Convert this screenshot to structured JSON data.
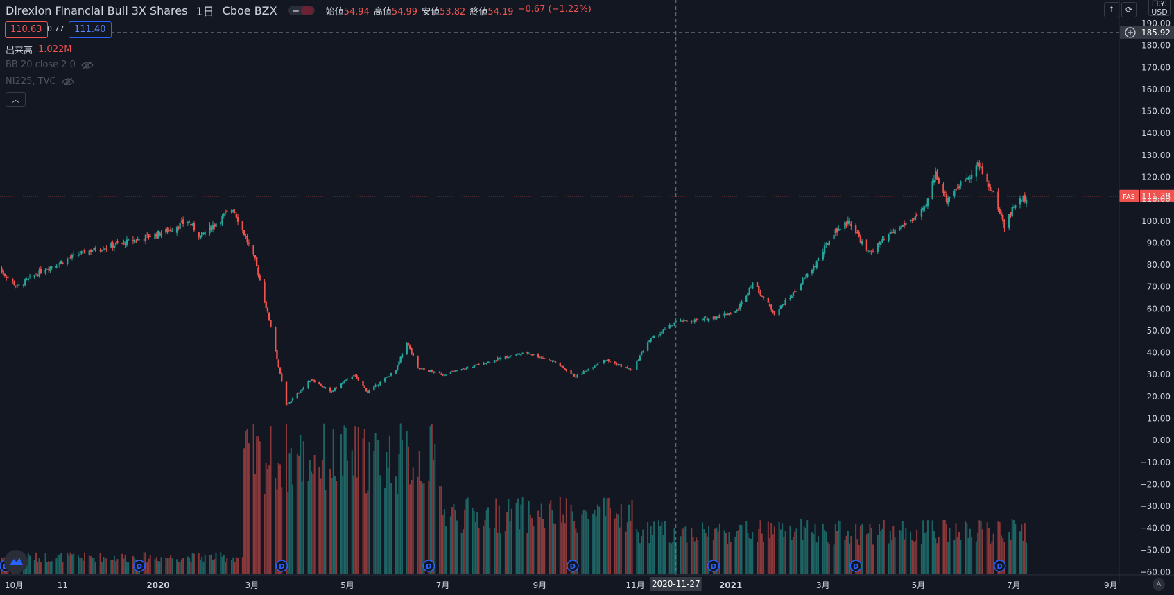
{
  "header": {
    "symbol_name": "Direxion Financial Bull 3X Shares",
    "interval": "1日",
    "exchange": "Cboe BZX",
    "ohlc": [
      {
        "key": "始値",
        "value": "54.94"
      },
      {
        "key": "高値",
        "value": "54.99"
      },
      {
        "key": "安値",
        "value": "53.82"
      },
      {
        "key": "終値",
        "value": "54.19"
      }
    ],
    "change": "−0.67 (−1.22%)",
    "bid": "110.63",
    "spread": "0.77",
    "ask": "111.40"
  },
  "indicators": {
    "volume_label": "出来高",
    "volume_value": "1.022M",
    "bb_label": "BB 20 close 2 0",
    "compare_label": "NI225, TVC"
  },
  "price_axis": {
    "currency_top": "円(¥)",
    "currency": "USD",
    "cursor_label": "185.92",
    "last_price_symbol": "FAS",
    "last_price_label": "111.38"
  },
  "time_axis": {
    "cursor_date": "2020-11-27"
  },
  "colors": {
    "background": "#131722",
    "up": "#26a69a",
    "down": "#ef5350",
    "text": "#d1d4dc",
    "accent": "#2962ff"
  },
  "icons": [
    "arrow-up-icon",
    "refresh-icon",
    "eye-off-icon",
    "chevron-up-icon",
    "plus-circle-icon",
    "dividend-icon",
    "logo-icon"
  ],
  "chart_data": {
    "type": "candlestick",
    "title": "Direxion Financial Bull 3X Shares",
    "ylim": [
      -60,
      190
    ],
    "y_ticks": [
      190,
      180,
      170,
      160,
      150,
      140,
      130,
      120,
      110,
      100,
      90,
      80,
      70,
      60,
      50,
      40,
      30,
      20,
      10,
      0,
      -10,
      -20,
      -30,
      -40,
      -50,
      -60
    ],
    "y_tick_labels": [
      "190.00",
      "180.00",
      "170.00",
      "160.00",
      "150.00",
      "140.00",
      "130.00",
      "120.00",
      "110.00",
      "100.00",
      "90.00",
      "80.00",
      "70.00",
      "60.00",
      "50.00",
      "40.00",
      "30.00",
      "20.00",
      "10.00",
      "0.00",
      "−10.00",
      "−20.00",
      "−30.00",
      "−40.00",
      "−50.00",
      "−60.00"
    ],
    "x_ticks": [
      {
        "label": "10月",
        "bold": false
      },
      {
        "label": "11",
        "bold": false
      },
      {
        "label": "2020",
        "bold": true
      },
      {
        "label": "3月",
        "bold": false
      },
      {
        "label": "5月",
        "bold": false
      },
      {
        "label": "7月",
        "bold": false
      },
      {
        "label": "9月",
        "bold": false
      },
      {
        "label": "11月",
        "bold": false
      },
      {
        "label": "2021",
        "bold": true
      },
      {
        "label": "3月",
        "bold": false
      },
      {
        "label": "5月",
        "bold": false
      },
      {
        "label": "7月",
        "bold": false
      },
      {
        "label": "9月",
        "bold": false
      }
    ],
    "price_path": [
      {
        "date": "2019-09-20",
        "close": 79
      },
      {
        "date": "2019-10-03",
        "close": 70
      },
      {
        "date": "2019-10-20",
        "close": 78
      },
      {
        "date": "2019-11-15",
        "close": 86
      },
      {
        "date": "2019-12-10",
        "close": 90
      },
      {
        "date": "2020-01-05",
        "close": 95
      },
      {
        "date": "2020-01-20",
        "close": 100
      },
      {
        "date": "2020-01-28",
        "close": 93
      },
      {
        "date": "2020-02-18",
        "close": 106
      },
      {
        "date": "2020-02-24",
        "close": 96
      },
      {
        "date": "2020-03-03",
        "close": 82
      },
      {
        "date": "2020-03-09",
        "close": 64
      },
      {
        "date": "2020-03-13",
        "close": 52
      },
      {
        "date": "2020-03-19",
        "close": 30
      },
      {
        "date": "2020-03-23",
        "close": 16
      },
      {
        "date": "2020-04-08",
        "close": 28
      },
      {
        "date": "2020-04-20",
        "close": 22
      },
      {
        "date": "2020-05-05",
        "close": 30
      },
      {
        "date": "2020-05-14",
        "close": 22
      },
      {
        "date": "2020-06-01",
        "close": 32
      },
      {
        "date": "2020-06-08",
        "close": 45
      },
      {
        "date": "2020-06-15",
        "close": 33
      },
      {
        "date": "2020-07-01",
        "close": 30
      },
      {
        "date": "2020-08-10",
        "close": 38
      },
      {
        "date": "2020-08-24",
        "close": 40
      },
      {
        "date": "2020-09-10",
        "close": 36
      },
      {
        "date": "2020-09-24",
        "close": 29
      },
      {
        "date": "2020-10-12",
        "close": 37
      },
      {
        "date": "2020-10-30",
        "close": 32
      },
      {
        "date": "2020-11-09",
        "close": 45
      },
      {
        "date": "2020-11-27",
        "close": 54
      },
      {
        "date": "2020-12-15",
        "close": 55
      },
      {
        "date": "2021-01-05",
        "close": 59
      },
      {
        "date": "2021-01-15",
        "close": 72
      },
      {
        "date": "2021-01-29",
        "close": 58
      },
      {
        "date": "2021-02-10",
        "close": 67
      },
      {
        "date": "2021-02-24",
        "close": 80
      },
      {
        "date": "2021-03-08",
        "close": 95
      },
      {
        "date": "2021-03-18",
        "close": 100
      },
      {
        "date": "2021-03-30",
        "close": 85
      },
      {
        "date": "2021-04-15",
        "close": 95
      },
      {
        "date": "2021-05-05",
        "close": 105
      },
      {
        "date": "2021-05-12",
        "close": 122
      },
      {
        "date": "2021-05-19",
        "close": 110
      },
      {
        "date": "2021-06-01",
        "close": 120
      },
      {
        "date": "2021-06-08",
        "close": 126
      },
      {
        "date": "2021-06-18",
        "close": 112
      },
      {
        "date": "2021-06-25",
        "close": 98
      },
      {
        "date": "2021-07-02",
        "close": 108
      },
      {
        "date": "2021-07-09",
        "close": 111
      }
    ]
  }
}
